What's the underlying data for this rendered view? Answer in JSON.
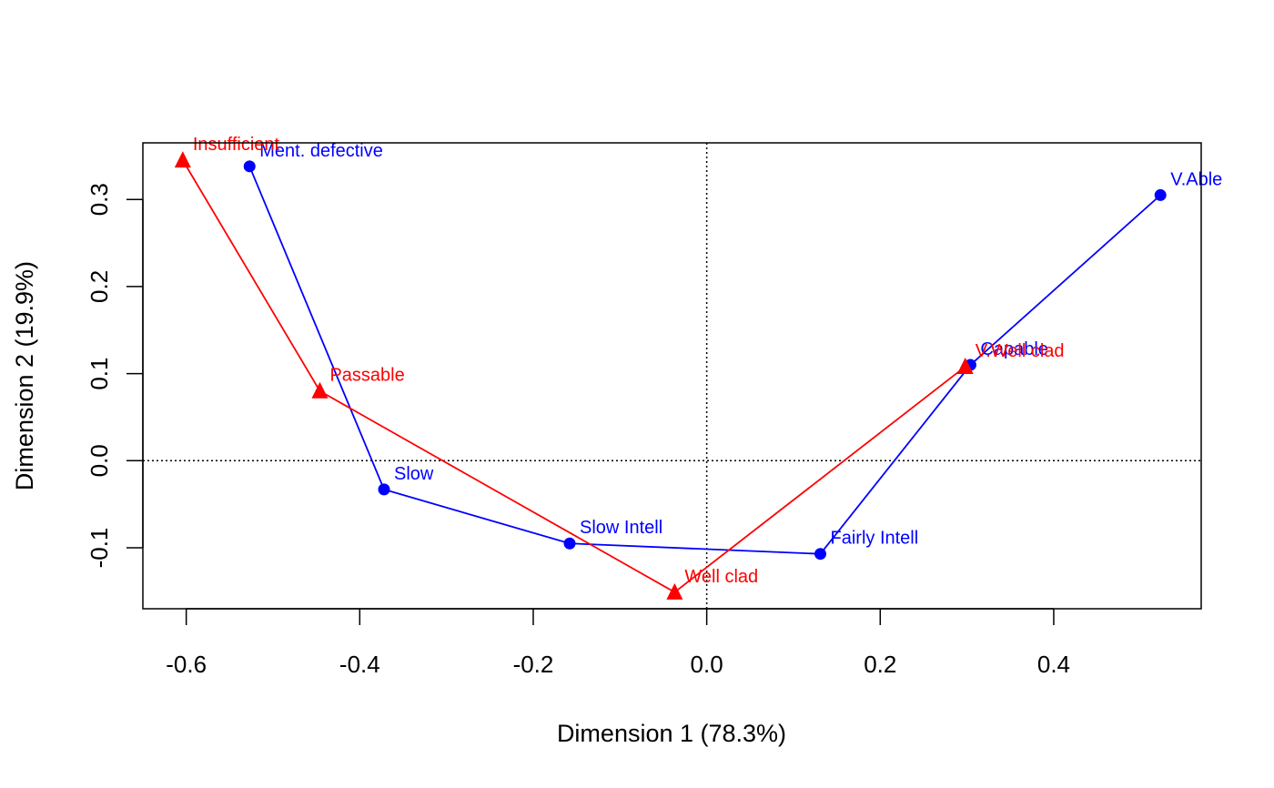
{
  "chart_data": {
    "type": "scatter",
    "title": "",
    "xlabel": "Dimension 1 (78.3%)",
    "ylabel": "Dimension 2 (19.9%)",
    "xlim": [
      -0.65,
      0.57
    ],
    "ylim": [
      -0.17,
      0.365
    ],
    "x_ticks": [
      -0.6,
      -0.4,
      -0.2,
      0.0,
      0.2,
      0.4
    ],
    "x_tick_labels": [
      "-0.6",
      "-0.4",
      "-0.2",
      "0.0",
      "0.2",
      "0.4"
    ],
    "y_ticks": [
      -0.1,
      0.0,
      0.1,
      0.2,
      0.3
    ],
    "y_tick_labels": [
      "-0.1",
      "0.0",
      "0.1",
      "0.2",
      "0.3"
    ],
    "reference_lines": {
      "x": 0.0,
      "y": 0.0,
      "style": "dotted"
    },
    "grid": false,
    "series": [
      {
        "marker": "circle",
        "color": "#0000ff",
        "connected": true,
        "points": [
          {
            "label": "Ment. defective",
            "x": -0.527,
            "y": 0.338
          },
          {
            "label": "Slow",
            "x": -0.372,
            "y": -0.033
          },
          {
            "label": "Slow Intell",
            "x": -0.158,
            "y": -0.095
          },
          {
            "label": "Fairly Intell",
            "x": 0.131,
            "y": -0.107
          },
          {
            "label": "Capable",
            "x": 0.304,
            "y": 0.11
          },
          {
            "label": "V.Able",
            "x": 0.523,
            "y": 0.305
          }
        ]
      },
      {
        "marker": "triangle",
        "color": "#ff0000",
        "connected": true,
        "points": [
          {
            "label": "Insufficient",
            "x": -0.604,
            "y": 0.345
          },
          {
            "label": "Passable",
            "x": -0.446,
            "y": 0.08
          },
          {
            "label": "Well clad",
            "x": -0.037,
            "y": -0.151
          },
          {
            "label": "V.Well clad",
            "x": 0.298,
            "y": 0.108
          }
        ]
      }
    ]
  }
}
